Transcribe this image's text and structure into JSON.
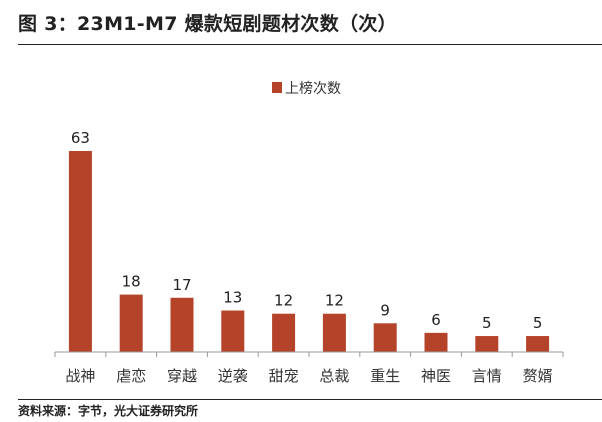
{
  "title": "图 3：23M1-M7 爆款短剧题材次数（次）",
  "source": "资料来源：字节，光大证券研究所",
  "chart_data": {
    "type": "bar",
    "title": "图 3：23M1-M7 爆款短剧题材次数（次）",
    "xlabel": "",
    "ylabel": "",
    "categories": [
      "战神",
      "虐恋",
      "穿越",
      "逆袭",
      "甜宠",
      "总裁",
      "重生",
      "神医",
      "言情",
      "赘婿"
    ],
    "series": [
      {
        "name": "上榜次数",
        "values": [
          63,
          18,
          17,
          13,
          12,
          12,
          9,
          6,
          5,
          5
        ]
      }
    ],
    "ylim": [
      0,
      70
    ],
    "grid": false,
    "legend": "top-center",
    "data_labels": true,
    "bar_color": "#b5432a"
  }
}
